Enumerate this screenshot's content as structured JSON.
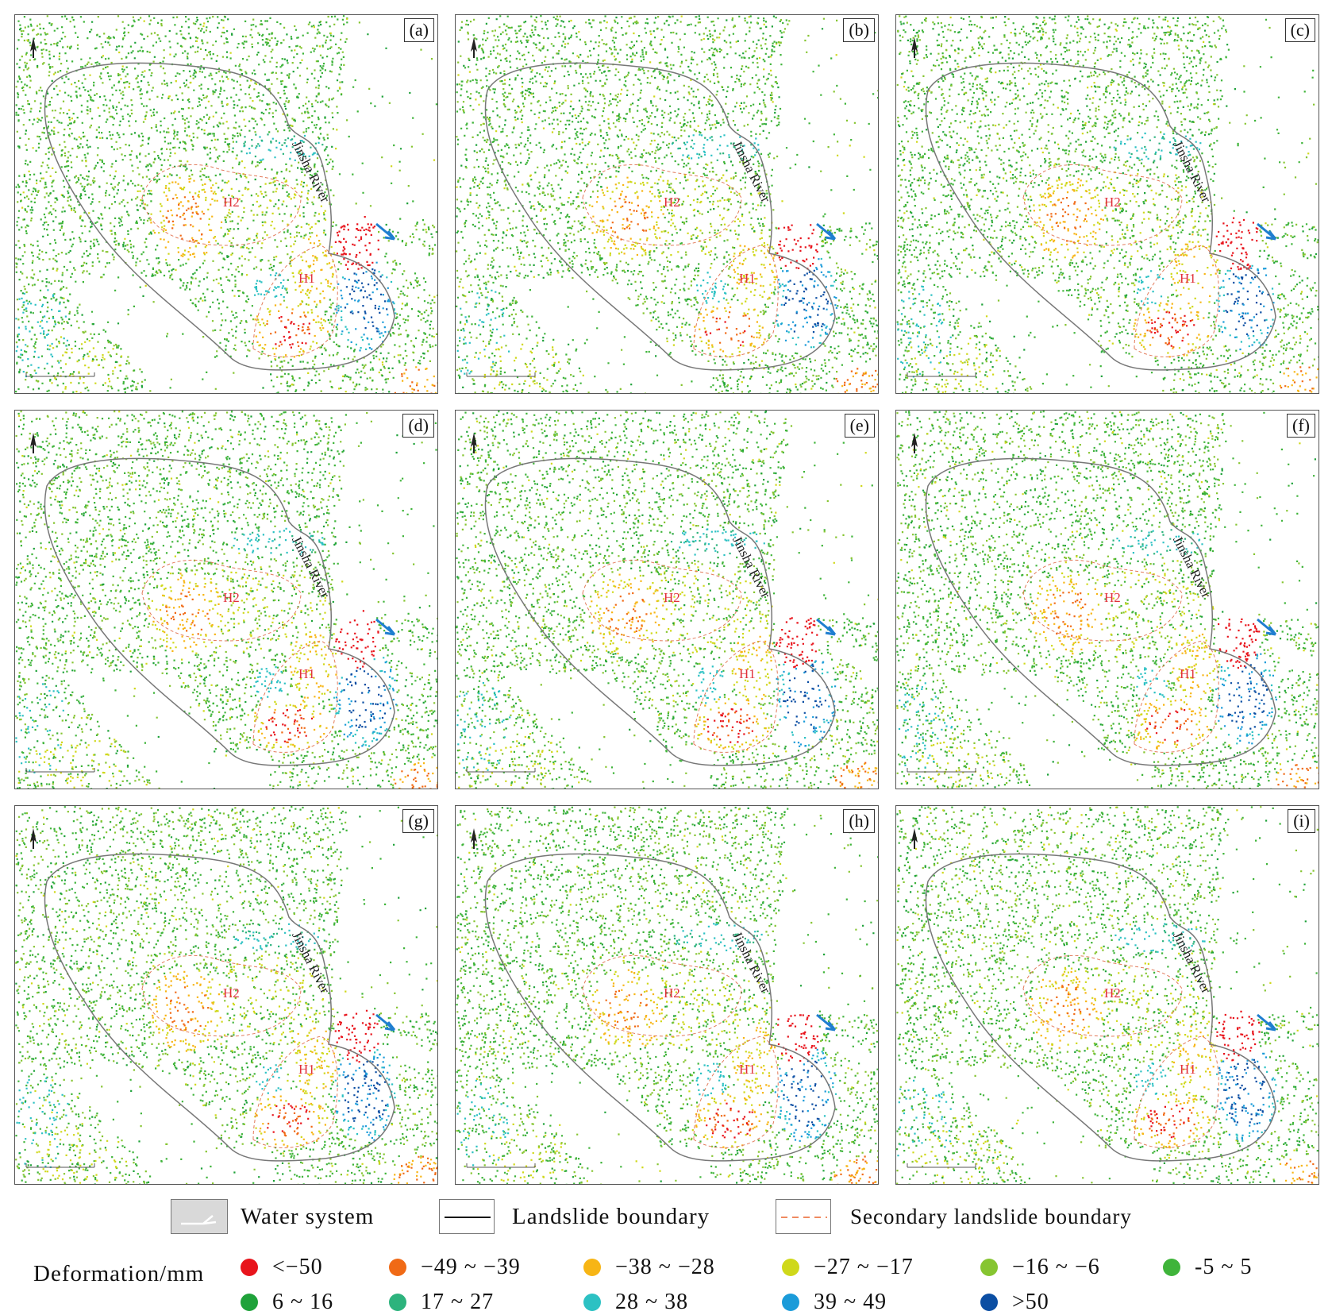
{
  "panels": [
    {
      "label": "(a)"
    },
    {
      "label": "(b)"
    },
    {
      "label": "(c)"
    },
    {
      "label": "(d)"
    },
    {
      "label": "(e)"
    },
    {
      "label": "(f)"
    },
    {
      "label": "(g)"
    },
    {
      "label": "(h)"
    },
    {
      "label": "(i)"
    }
  ],
  "map_labels": {
    "river": "Jinsha River",
    "zone_h1": "H1",
    "zone_h2": "H2"
  },
  "legend": {
    "water_system": "Water  system",
    "landslide_boundary": "Landslide boundary",
    "secondary_boundary": "Secondary landslide boundary",
    "deformation_title": "Deformation/mm",
    "classes": [
      {
        "label": "<−50",
        "color": "#e8141c"
      },
      {
        "label": "−49 ~ −39",
        "color": "#f06a16"
      },
      {
        "label": "−38 ~ −28",
        "color": "#f7b515"
      },
      {
        "label": "−27 ~ −17",
        "color": "#cfd81a"
      },
      {
        "label": "−16 ~ −6",
        "color": "#86c531"
      },
      {
        "label": "-5 ~ 5",
        "color": "#3fb43a"
      },
      {
        "label": "6 ~ 16",
        "color": "#1fa23a"
      },
      {
        "label": "17 ~ 27",
        "color": "#2db37d"
      },
      {
        "label": "28 ~ 38",
        "color": "#2cc1c3"
      },
      {
        "label": "39 ~ 49",
        "color": "#1b9bd9"
      },
      {
        "label": ">50",
        "color": "#0b4ea3"
      }
    ]
  }
}
